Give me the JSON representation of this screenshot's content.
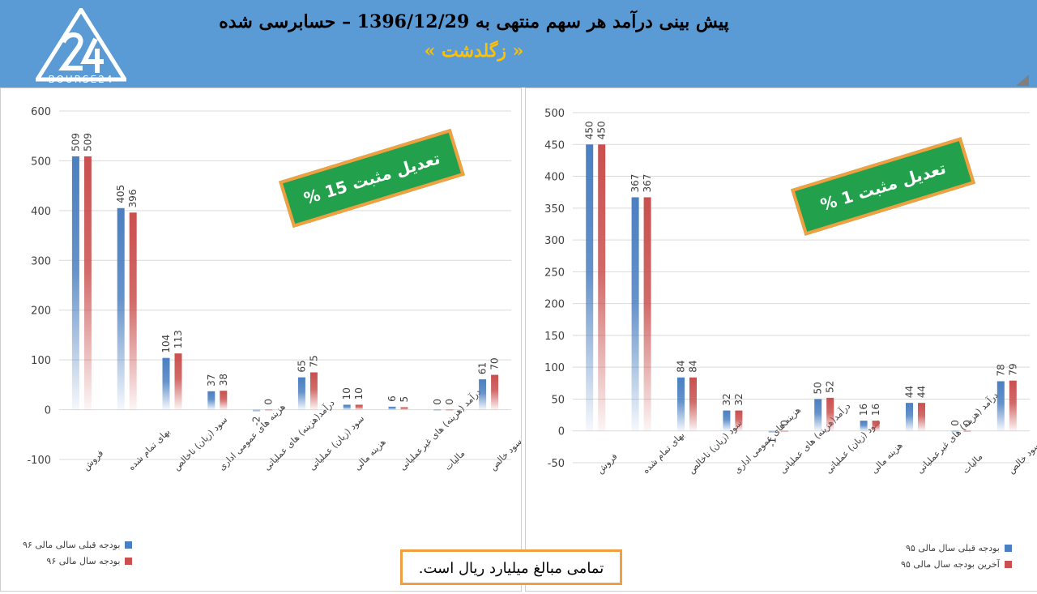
{
  "header": {
    "title": "پیش بینی درآمد هر سهم منتهی به 1396/12/29 – حسابرسی شده",
    "subtitle": "« زگلدشت »",
    "logo_text": "BOURSE24",
    "background": "#5b9bd5",
    "subtitle_color": "#ffc000"
  },
  "colors": {
    "series_a": "#4a7fc1",
    "series_b": "#c9504e",
    "badge_green": "#22a04b",
    "badge_border": "#f0a040"
  },
  "note": "تمامی مبالغ میلیارد ریال است.",
  "chart_data": [
    {
      "type": "bar",
      "badge": "تعدیل مثبت 15 %",
      "categories": [
        "فروش",
        "بهای تمام شده",
        "سود (زیان) ناخالص",
        "هزینه های عمومی اداری",
        "درآمد(هزینه) های عملیاتی",
        "سود (زیان) عملیاتی",
        "هزینه مالی",
        "درآمد (هزینه) های غیرعملیاتی",
        "مالیات",
        "سود خالص"
      ],
      "series": [
        {
          "name": "بودجه قبلی سالی مالی ۹۶",
          "values": [
            509,
            405,
            104,
            37,
            -2,
            65,
            10,
            6,
            0,
            61
          ]
        },
        {
          "name": "بودجه سال مالی ۹۶",
          "values": [
            509,
            396,
            113,
            38,
            0,
            75,
            10,
            5,
            0,
            70
          ]
        }
      ],
      "ylim": [
        -100,
        600
      ],
      "yticks": [
        "-100",
        "0",
        "100",
        "200",
        "300",
        "400",
        "500",
        "600"
      ],
      "grid": true,
      "legend": "bottom-left"
    },
    {
      "type": "bar",
      "badge": "تعدیل مثبت 1 %",
      "categories": [
        "فروش",
        "بهای تمام شده",
        "سود (زیان) ناخالص",
        "هزینه های عمومی اداری",
        "درآمد(هزینه) های عملیاتی",
        "سود (زیان) عملیاتی",
        "هزینه مالی",
        "درآمد (هزینه) های غیرعملیاتی",
        "مالیات",
        "سود خالص"
      ],
      "series": [
        {
          "name": "بودجه قبلی سال مالی ۹۵",
          "values": [
            450,
            367,
            84,
            32,
            -1,
            50,
            16,
            44,
            0,
            78
          ]
        },
        {
          "name": "آخرین بودجه سال مالی ۹۵",
          "values": [
            450,
            367,
            84,
            32,
            0,
            52,
            16,
            44,
            0,
            79
          ]
        }
      ],
      "ylim": [
        -50,
        500
      ],
      "yticks": [
        "-50",
        "0",
        "50",
        "100",
        "150",
        "200",
        "250",
        "300",
        "350",
        "400",
        "450",
        "500"
      ],
      "grid": true,
      "legend": "bottom-right"
    }
  ]
}
